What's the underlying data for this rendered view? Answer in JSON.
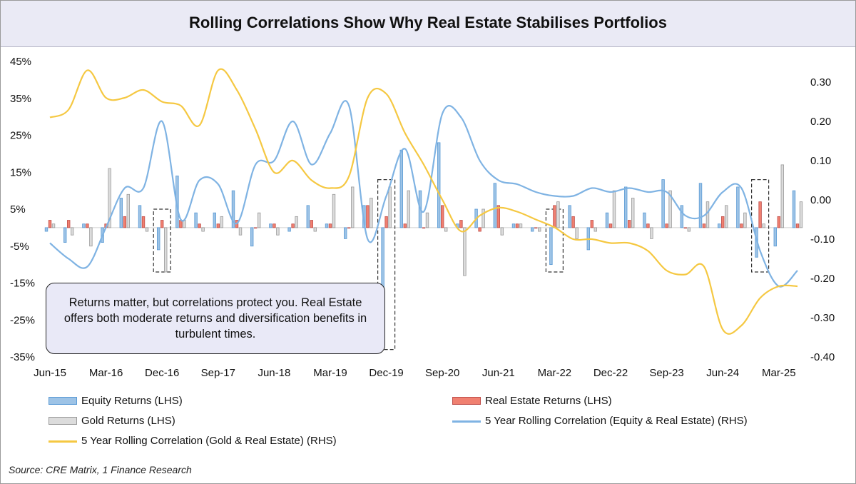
{
  "title": "Rolling Correlations Show Why Real Estate Stabilises Portfolios",
  "source": "Source: CRE Matrix, 1 Finance Research",
  "note": "Returns matter, but correlations protect you. Real Estate offers both moderate returns and diversification benefits in turbulent  times.",
  "colors": {
    "equity": "#5b9bd5",
    "equity_fill": "#9dc3e6",
    "realestate": "#c0504d",
    "realestate_fill": "#f08070",
    "gold": "#9a9a9a",
    "gold_fill": "#dcdcdc",
    "corr_equity": "#7fb3e3",
    "corr_gold": "#f5c842"
  },
  "chart_data": {
    "type": "bar",
    "x_tick_labels": [
      "Jun-15",
      "Mar-16",
      "Dec-16",
      "Sep-17",
      "Jun-18",
      "Mar-19",
      "Dec-19",
      "Sep-20",
      "Jun-21",
      "Mar-22",
      "Dec-22",
      "Sep-23",
      "Jun-24",
      "Mar-25"
    ],
    "y_left": {
      "min": -35,
      "max": 45,
      "step": 10,
      "unit": "%",
      "ticks": [
        "45%",
        "35%",
        "25%",
        "15%",
        "5%",
        "-5%",
        "-15%",
        "-25%",
        "-35%"
      ]
    },
    "y_right": {
      "min": -0.4,
      "max": 0.3,
      "step": 0.1,
      "ticks": [
        "0.30",
        "0.20",
        "0.10",
        "0.00",
        "-0.10",
        "-0.20",
        "-0.30",
        "-0.40"
      ]
    },
    "x": [
      "Jun-15",
      "Sep-15",
      "Dec-15",
      "Mar-16",
      "Jun-16",
      "Sep-16",
      "Dec-16",
      "Mar-17",
      "Jun-17",
      "Sep-17",
      "Dec-17",
      "Mar-18",
      "Jun-18",
      "Sep-18",
      "Dec-18",
      "Mar-19",
      "Jun-19",
      "Sep-19",
      "Dec-19",
      "Mar-20",
      "Jun-20",
      "Sep-20",
      "Dec-20",
      "Mar-21",
      "Jun-21",
      "Sep-21",
      "Dec-21",
      "Mar-22",
      "Jun-22",
      "Sep-22",
      "Dec-22",
      "Mar-23",
      "Jun-23",
      "Sep-23",
      "Dec-23",
      "Mar-24",
      "Jun-24",
      "Sep-24",
      "Dec-24",
      "Mar-25",
      "Jun-25"
    ],
    "series": [
      {
        "name": "Equity Returns (LHS)",
        "kind": "bar",
        "axis": "left",
        "values": [
          -1,
          -4,
          1,
          -4,
          8,
          6,
          -6,
          14,
          4,
          4,
          10,
          -5,
          1,
          -1,
          6,
          1,
          -3,
          6,
          -30,
          21,
          10,
          23,
          1,
          5,
          12,
          1,
          -1,
          -10,
          6,
          -6,
          4,
          11,
          4,
          13,
          6,
          12,
          1,
          11,
          -8,
          -5,
          10
        ]
      },
      {
        "name": "Real Estate Returns (LHS)",
        "kind": "bar",
        "axis": "left",
        "values": [
          2,
          2,
          1,
          1,
          3,
          3,
          2,
          2,
          1,
          1,
          2,
          0,
          1,
          1,
          2,
          1,
          0,
          6,
          3,
          1,
          0,
          6,
          2,
          -1,
          6,
          1,
          0,
          6,
          3,
          2,
          1,
          2,
          1,
          1,
          0,
          1,
          3,
          1,
          7,
          3,
          1
        ]
      },
      {
        "name": "Gold Returns (LHS)",
        "kind": "bar",
        "axis": "left",
        "values": [
          1,
          -2,
          -5,
          16,
          9,
          -1,
          -12,
          2,
          -1,
          3,
          -2,
          4,
          -2,
          3,
          -1,
          9,
          11,
          8,
          11,
          10,
          4,
          -1,
          -13,
          5,
          -2,
          1,
          -1,
          7,
          -3,
          -1,
          10,
          8,
          -3,
          10,
          -1,
          7,
          6,
          4,
          1,
          17,
          7
        ]
      },
      {
        "name": "5 Year Rolling Correlation (Equity & Real Estate) (RHS)",
        "kind": "line",
        "axis": "right",
        "values": [
          -0.11,
          -0.15,
          -0.17,
          -0.07,
          0.03,
          0.03,
          0.2,
          -0.05,
          0.05,
          0.04,
          -0.06,
          0.09,
          0.1,
          0.2,
          0.09,
          0.17,
          0.24,
          -0.1,
          0.01,
          0.13,
          -0.03,
          0.22,
          0.21,
          0.1,
          0.05,
          0.04,
          0.02,
          0.01,
          0.01,
          0.03,
          0.02,
          0.03,
          0.02,
          0.02,
          -0.04,
          -0.04,
          0.02,
          0.03,
          -0.13,
          -0.22,
          -0.18
        ]
      },
      {
        "name": "5 Year Rolling Correlation (Gold & Real Estate) (RHS)",
        "kind": "line",
        "axis": "right",
        "values": [
          0.21,
          0.23,
          0.33,
          0.26,
          0.26,
          0.28,
          0.25,
          0.24,
          0.19,
          0.33,
          0.28,
          0.18,
          0.07,
          0.1,
          0.05,
          0.03,
          0.06,
          0.26,
          0.27,
          0.17,
          0.09,
          0.0,
          -0.08,
          -0.04,
          -0.02,
          -0.03,
          -0.05,
          -0.07,
          -0.1,
          -0.1,
          -0.11,
          -0.11,
          -0.13,
          -0.18,
          -0.19,
          -0.17,
          -0.33,
          -0.32,
          -0.25,
          -0.22,
          -0.22
        ]
      }
    ],
    "highlights": [
      "Dec-16",
      "Dec-19",
      "Mar-22",
      "Dec-24"
    ],
    "legend_placement": "bottom"
  }
}
